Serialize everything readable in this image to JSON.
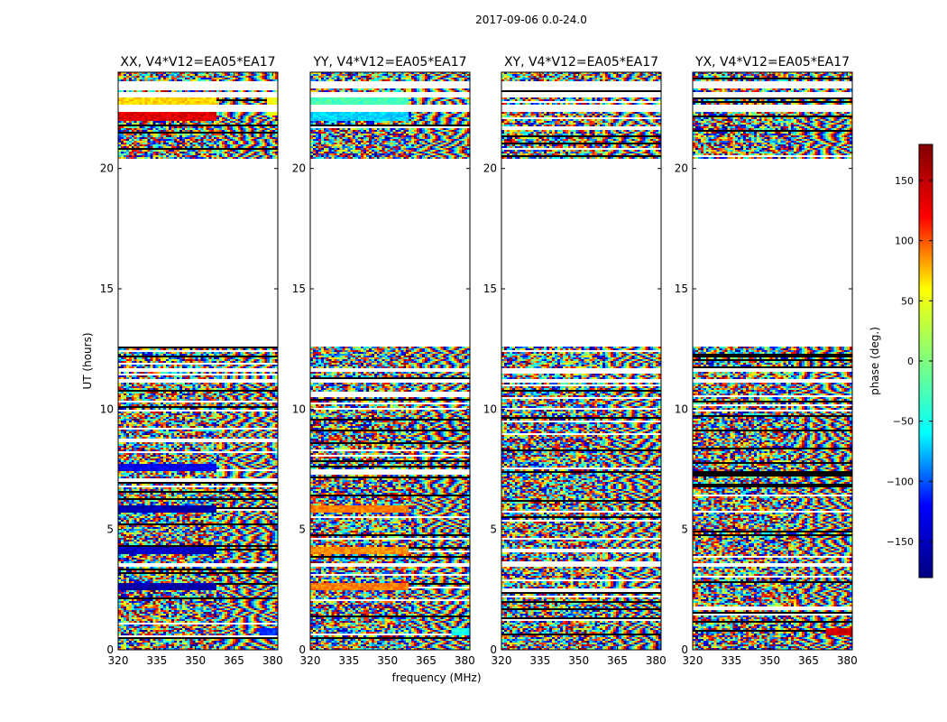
{
  "figure_title": "2017-09-06 0.0-24.0",
  "chart_data": [
    {
      "type": "heatmap",
      "title": "XX, V4*V12=EA05*EA17",
      "xlabel": "frequency (MHz)",
      "ylabel": "UT (hours)",
      "xlim": [
        320,
        382
      ],
      "ylim": [
        0,
        24
      ],
      "xticks": [
        320,
        335,
        350,
        365,
        380
      ],
      "yticks": [
        0,
        5,
        10,
        15,
        20
      ],
      "value": "phase (deg.)",
      "data_gaps_hours": [
        [
          3.5,
          3.6
        ],
        [
          11.1,
          11.2
        ],
        [
          11.55,
          11.7
        ],
        [
          12.6,
          20.4
        ],
        [
          22.4,
          22.6
        ],
        [
          23.0,
          23.1
        ],
        [
          23.4,
          23.6
        ],
        [
          24.0,
          24.0
        ]
      ],
      "features": [
        {
          "t0": 22.0,
          "t1": 22.4,
          "f0": 320,
          "f1": 358,
          "phase": 145
        },
        {
          "t0": 22.6,
          "t1": 23.0,
          "f0": 320,
          "f1": 358,
          "phase": 60
        },
        {
          "t0": 5.7,
          "t1": 6.0,
          "f0": 320,
          "f1": 358,
          "phase": -165
        },
        {
          "t0": 2.5,
          "t1": 2.8,
          "f0": 320,
          "f1": 358,
          "phase": -165
        },
        {
          "t0": 4.0,
          "t1": 4.25,
          "f0": 320,
          "f1": 358,
          "phase": -155
        },
        {
          "t0": 7.4,
          "t1": 7.7,
          "f0": 320,
          "f1": 358,
          "phase": -140
        },
        {
          "t0": 0.6,
          "t1": 0.9,
          "f0": 375,
          "f1": 382,
          "phase": -120
        },
        {
          "t0": 22.2,
          "t1": 23.0,
          "f0": 378,
          "f1": 382,
          "phase": 40
        }
      ]
    },
    {
      "type": "heatmap",
      "title": "YY, V4*V12=EA05*EA17",
      "xlabel": "frequency (MHz)",
      "ylabel": "",
      "xlim": [
        320,
        382
      ],
      "ylim": [
        0,
        24
      ],
      "xticks": [
        320,
        335,
        350,
        365,
        380
      ],
      "yticks": [
        0,
        5,
        10,
        15,
        20
      ],
      "value": "phase (deg.)",
      "data_gaps_hours": [
        [
          3.5,
          3.6
        ],
        [
          11.1,
          11.2
        ],
        [
          11.55,
          11.7
        ],
        [
          12.6,
          20.4
        ],
        [
          22.4,
          22.6
        ],
        [
          23.0,
          23.1
        ],
        [
          23.4,
          23.6
        ]
      ],
      "features": [
        {
          "t0": 22.0,
          "t1": 22.4,
          "f0": 320,
          "f1": 358,
          "phase": -60
        },
        {
          "t0": 22.6,
          "t1": 23.0,
          "f0": 320,
          "f1": 358,
          "phase": -20
        },
        {
          "t0": 5.7,
          "t1": 6.0,
          "f0": 320,
          "f1": 358,
          "phase": 90
        },
        {
          "t0": 2.5,
          "t1": 2.8,
          "f0": 320,
          "f1": 358,
          "phase": 90
        },
        {
          "t0": 4.0,
          "t1": 4.25,
          "f0": 320,
          "f1": 358,
          "phase": 85
        },
        {
          "t0": 0.6,
          "t1": 0.9,
          "f0": 375,
          "f1": 382,
          "phase": -40
        }
      ]
    },
    {
      "type": "heatmap",
      "title": "XY, V4*V12=EA05*EA17",
      "xlabel": "frequency (MHz)",
      "ylabel": "",
      "xlim": [
        320,
        382
      ],
      "ylim": [
        0,
        24
      ],
      "xticks": [
        320,
        335,
        350,
        365,
        380
      ],
      "yticks": [
        0,
        5,
        10,
        15,
        20
      ],
      "value": "phase (deg.)",
      "data_gaps_hours": [
        [
          3.5,
          3.6
        ],
        [
          11.1,
          11.2
        ],
        [
          11.55,
          11.7
        ],
        [
          12.6,
          20.4
        ],
        [
          22.4,
          22.6
        ],
        [
          23.0,
          23.1
        ],
        [
          23.4,
          23.6
        ]
      ],
      "features": []
    },
    {
      "type": "heatmap",
      "title": "YX, V4*V12=EA05*EA17",
      "xlabel": "frequency (MHz)",
      "ylabel": "",
      "xlim": [
        320,
        382
      ],
      "ylim": [
        0,
        24
      ],
      "xticks": [
        320,
        335,
        350,
        365,
        380
      ],
      "yticks": [
        0,
        5,
        10,
        15,
        20
      ],
      "value": "phase (deg.)",
      "data_gaps_hours": [
        [
          3.5,
          3.6
        ],
        [
          11.1,
          11.2
        ],
        [
          11.55,
          11.7
        ],
        [
          12.6,
          20.4
        ],
        [
          22.4,
          22.6
        ],
        [
          23.0,
          23.1
        ],
        [
          23.4,
          23.6
        ]
      ],
      "features": [
        {
          "t0": 0.6,
          "t1": 0.9,
          "f0": 372,
          "f1": 382,
          "phase": 150
        }
      ]
    }
  ],
  "colorbar": {
    "label": "phase (deg.)",
    "range": [
      -180,
      180
    ],
    "ticks": [
      150,
      100,
      50,
      0,
      -50,
      -100,
      -150
    ],
    "tick_labels": [
      "150",
      "100",
      "50",
      "0",
      "−50",
      "−100",
      "−150"
    ],
    "colormap": "jet",
    "colors": [
      "#000080",
      "#0000ff",
      "#00ffff",
      "#7fff7f",
      "#ffff00",
      "#ff0000",
      "#800000"
    ]
  },
  "shared_labels": {
    "xlabel": "frequency (MHz)",
    "ylabel": "UT (hours)"
  }
}
